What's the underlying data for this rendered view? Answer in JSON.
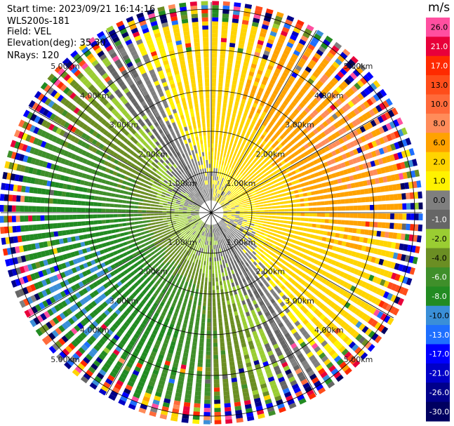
{
  "header": {
    "start_time": "Start time: 2023/09/21 16:14:16",
    "instrument": "WLS200s-181",
    "field": "Field: VEL",
    "elevation": "Elevation(deg): 35.30",
    "nrays": "NRays: 120"
  },
  "colorbar": {
    "unit": "m/s",
    "levels": [
      {
        "label": "26.0",
        "color": "#ff4fa0"
      },
      {
        "label": "21.0",
        "color": "#e8003a"
      },
      {
        "label": "17.0",
        "color": "#ff2a00"
      },
      {
        "label": "13.0",
        "color": "#ff4d1a"
      },
      {
        "label": "10.0",
        "color": "#ff6a3a"
      },
      {
        "label": "8.0",
        "color": "#ff8c5a"
      },
      {
        "label": "6.0",
        "color": "#ffa200"
      },
      {
        "label": "2.0",
        "color": "#ffd400"
      },
      {
        "label": "1.0",
        "color": "#fff200"
      },
      {
        "label": "0.0",
        "color": "#7f7f7f"
      },
      {
        "label": "-1.0",
        "color": "#666666"
      },
      {
        "label": "-2.0",
        "color": "#9acd32"
      },
      {
        "label": "-4.0",
        "color": "#6b8e23"
      },
      {
        "label": "-6.0",
        "color": "#3f8f2a"
      },
      {
        "label": "-8.0",
        "color": "#228b22"
      },
      {
        "label": "-10.0",
        "color": "#3a8fd8"
      },
      {
        "label": "-13.0",
        "color": "#1e6fff"
      },
      {
        "label": "-17.0",
        "color": "#0000ff"
      },
      {
        "label": "-21.0",
        "color": "#0000c8"
      },
      {
        "label": "-26.0",
        "color": "#00008b"
      },
      {
        "label": "-30.0",
        "color": "#000060"
      }
    ]
  },
  "chart_data": {
    "type": "heatmap",
    "projection": "polar-ppi",
    "field": "VEL",
    "units": "m/s",
    "nrays": 120,
    "range_rings_km": [
      1.0,
      2.0,
      3.0,
      4.0,
      5.0
    ],
    "ring_labels": [
      "1.00km",
      "2.00km",
      "3.00km",
      "4.00km",
      "5.00km"
    ],
    "color_range": [
      -30.0,
      26.0
    ],
    "pattern": {
      "description": "dipole",
      "receding_sector_center_deg": 60,
      "approaching_sector_center_deg": 240,
      "near_ring_speed": 1.0,
      "peak_speed_by_ring_km": {
        "1": 2.0,
        "2": 6.0,
        "3": 8.0,
        "4": 8.0
      },
      "noise_beyond_km": 4.6
    },
    "grid": true
  }
}
